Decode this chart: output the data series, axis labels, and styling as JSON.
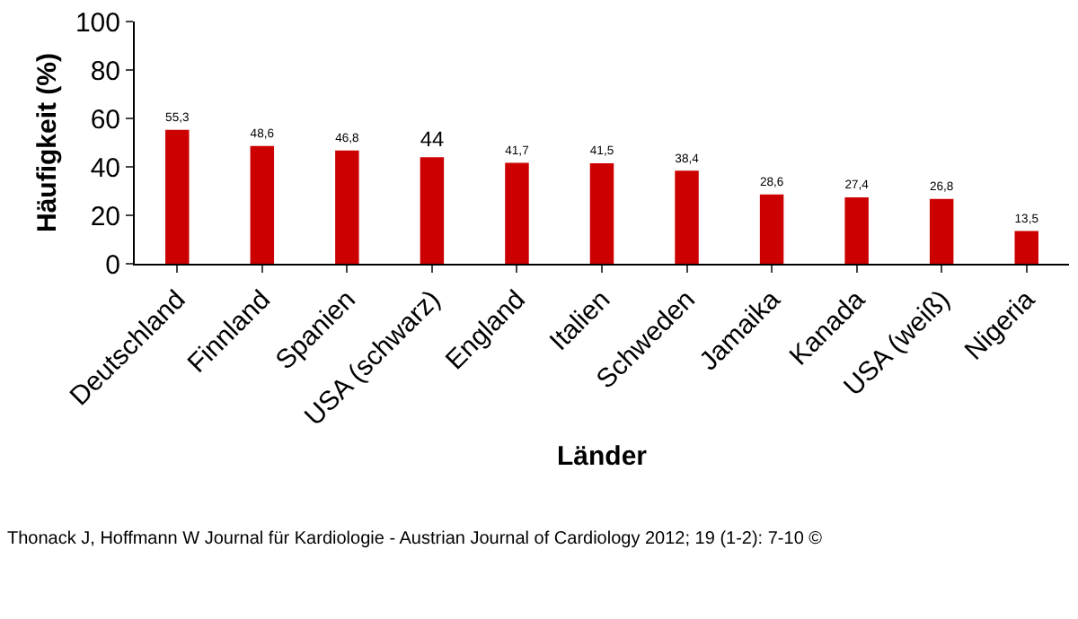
{
  "chart_data": {
    "type": "bar",
    "xlabel": "Länder",
    "ylabel": "Häufigkeit (%)",
    "categories": [
      "Deutschland",
      "Finnland",
      "Spanien",
      "USA (schwarz)",
      "England",
      "Italien",
      "Schweden",
      "Jamaika",
      "Kanada",
      "USA (weiß)",
      "Nigeria"
    ],
    "values": [
      55.3,
      48.6,
      46.8,
      44,
      41.7,
      41.5,
      38.4,
      28.6,
      27.4,
      26.8,
      13.5
    ],
    "value_labels": [
      "55,3",
      "48,6",
      "46,8",
      "44",
      "41,7",
      "41,5",
      "38,4",
      "28,6",
      "27,4",
      "26,8",
      "13,5"
    ],
    "color": "#cc0000",
    "ylim": [
      0,
      100
    ],
    "yticks": [
      0,
      20,
      40,
      60,
      80,
      100
    ],
    "grid": false,
    "legend": false,
    "annotations": [
      "Thonack J, Hoffmann W Journal für Kardiologie - Austrian Journal of Cardiology 2012; 19 (1-2): 7-10 ©"
    ]
  }
}
